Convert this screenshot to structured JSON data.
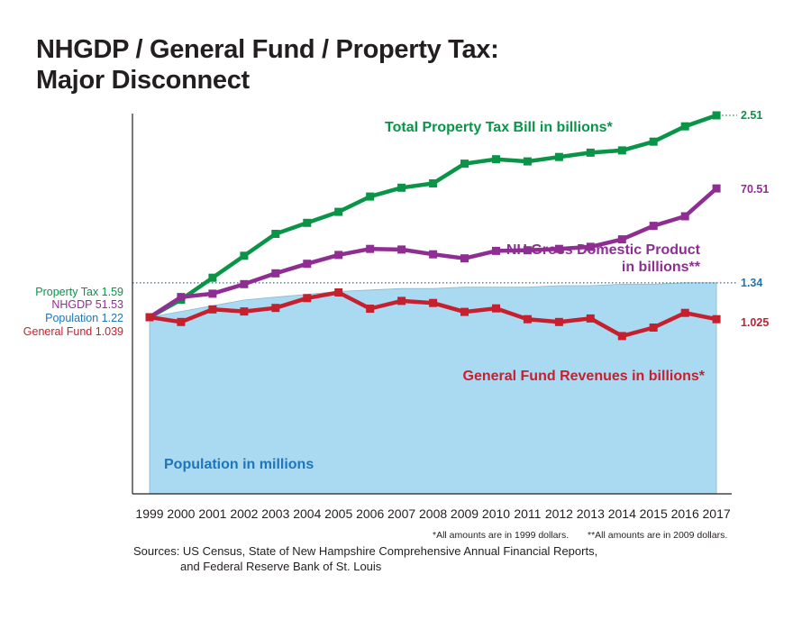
{
  "title": {
    "line1": "NHGDP / General Fund / Property Tax:",
    "line2": "Major Disconnect"
  },
  "colors": {
    "property_tax": "#0a9448",
    "nhgdp": "#8e2e93",
    "population": "#1f75b7",
    "population_fill": "#a9daf1",
    "general_fund": "#c6202f",
    "text": "#231f20"
  },
  "chart_data": {
    "type": "line",
    "x": [
      "1999",
      "2000",
      "2001",
      "2002",
      "2003",
      "2004",
      "2005",
      "2006",
      "2007",
      "2008",
      "2009",
      "2010",
      "2011",
      "2012",
      "2013",
      "2014",
      "2015",
      "2016",
      "2017"
    ],
    "series": [
      {
        "key": "property_tax",
        "name": "Total Property Tax Bill in billions*",
        "start_label": "Property Tax 1.59",
        "end_label": "2.51",
        "values": [
          1.59,
          1.67,
          1.77,
          1.87,
          1.97,
          2.02,
          2.07,
          2.14,
          2.18,
          2.2,
          2.29,
          2.31,
          2.3,
          2.32,
          2.34,
          2.35,
          2.39,
          2.46,
          2.51
        ]
      },
      {
        "key": "nhgdp",
        "name": "NH Gross Domestic Product in billions**",
        "start_label": "NHGDP 51.53",
        "end_label": "70.51",
        "values": [
          51.53,
          54.5,
          55.0,
          56.4,
          58.0,
          59.4,
          60.7,
          61.6,
          61.5,
          60.8,
          60.2,
          61.3,
          61.4,
          61.6,
          61.9,
          63.0,
          65.0,
          66.4,
          70.51
        ]
      },
      {
        "key": "general_fund",
        "name": "General Fund Revenues in billions*",
        "start_label": "General Fund 1.039",
        "end_label": "1.025",
        "values": [
          1.039,
          1.005,
          1.095,
          1.08,
          1.105,
          1.175,
          1.215,
          1.1,
          1.155,
          1.14,
          1.077,
          1.102,
          1.025,
          1.005,
          1.03,
          0.905,
          0.965,
          1.07,
          1.025
        ]
      },
      {
        "key": "population",
        "name": "Population in millions",
        "start_label": "Population 1.22",
        "end_label": "1.34",
        "values": [
          1.22,
          1.24,
          1.26,
          1.28,
          1.29,
          1.3,
          1.31,
          1.315,
          1.32,
          1.32,
          1.325,
          1.325,
          1.325,
          1.33,
          1.33,
          1.335,
          1.335,
          1.34,
          1.34
        ]
      }
    ],
    "grid": false
  },
  "footnotes": {
    "note1": "*All amounts are in 1999 dollars.",
    "note2": "**All amounts are in 2009 dollars."
  },
  "sources": {
    "line1": "Sources: US Census, State of New Hampshire Comprehensive Annual Financial Reports,",
    "line2": "and Federal Reserve Bank of St. Louis"
  }
}
